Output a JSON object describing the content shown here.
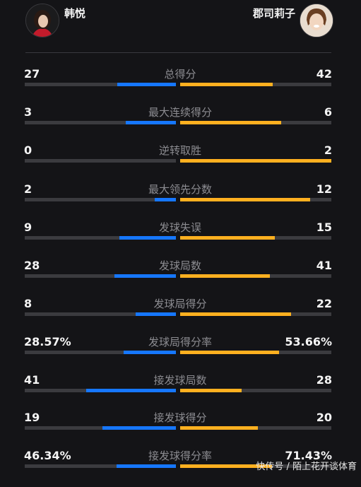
{
  "players": {
    "left_name": "韩悦",
    "right_name": "郡司莉子"
  },
  "colors": {
    "left": "#1677ff",
    "right": "#ffb020",
    "track": "#3b3b3f"
  },
  "stats": [
    {
      "label": "总得分",
      "left": "27",
      "right": "42",
      "left_ratio": 0.39,
      "right_ratio": 0.61
    },
    {
      "label": "最大连续得分",
      "left": "3",
      "right": "6",
      "left_ratio": 0.33,
      "right_ratio": 0.67
    },
    {
      "label": "逆转取胜",
      "left": "0",
      "right": "2",
      "left_ratio": 0.0,
      "right_ratio": 1.0
    },
    {
      "label": "最大领先分数",
      "left": "2",
      "right": "12",
      "left_ratio": 0.14,
      "right_ratio": 0.86
    },
    {
      "label": "发球失误",
      "left": "9",
      "right": "15",
      "left_ratio": 0.375,
      "right_ratio": 0.625
    },
    {
      "label": "发球局数",
      "left": "28",
      "right": "41",
      "left_ratio": 0.406,
      "right_ratio": 0.594
    },
    {
      "label": "发球局得分",
      "left": "8",
      "right": "22",
      "left_ratio": 0.267,
      "right_ratio": 0.733
    },
    {
      "label": "发球局得分率",
      "left": "28.57%",
      "right": "53.66%",
      "left_ratio": 0.3475,
      "right_ratio": 0.6525
    },
    {
      "label": "接发球局数",
      "left": "41",
      "right": "28",
      "left_ratio": 0.594,
      "right_ratio": 0.406
    },
    {
      "label": "接发球得分",
      "left": "19",
      "right": "20",
      "left_ratio": 0.487,
      "right_ratio": 0.513
    },
    {
      "label": "接发球得分率",
      "left": "46.34%",
      "right": "71.43%",
      "left_ratio": 0.3935,
      "right_ratio": 0.6065
    }
  ],
  "watermark": "快传号 / 陌上花开谈体育"
}
